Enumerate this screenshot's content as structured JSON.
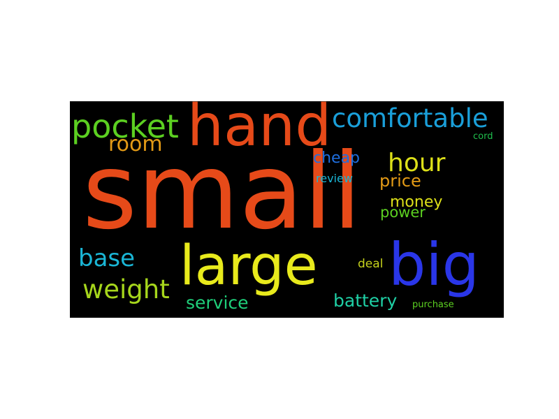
{
  "wordcloud": {
    "background": "#000000",
    "words": [
      {
        "text": "small",
        "color": "#e64a19"
      },
      {
        "text": "hand",
        "color": "#e64a19"
      },
      {
        "text": "pocket",
        "color": "#5cd021"
      },
      {
        "text": "comfortable",
        "color": "#1a9fd9"
      },
      {
        "text": "room",
        "color": "#e39a16"
      },
      {
        "text": "cord",
        "color": "#1fbf4d"
      },
      {
        "text": "hour",
        "color": "#dde019"
      },
      {
        "text": "cheap",
        "color": "#1f6fe0"
      },
      {
        "text": "review",
        "color": "#1ab6d6"
      },
      {
        "text": "price",
        "color": "#e39a16"
      },
      {
        "text": "money",
        "color": "#dde019"
      },
      {
        "text": "power",
        "color": "#5cd021"
      },
      {
        "text": "base",
        "color": "#1ab6d6"
      },
      {
        "text": "large",
        "color": "#e8ea1c"
      },
      {
        "text": "big",
        "color": "#2a36e8"
      },
      {
        "text": "deal",
        "color": "#c6d21c"
      },
      {
        "text": "weight",
        "color": "#a6d61c"
      },
      {
        "text": "service",
        "color": "#1fcf7a"
      },
      {
        "text": "battery",
        "color": "#1fcfa5"
      },
      {
        "text": "purchase",
        "color": "#5cd021"
      }
    ]
  }
}
